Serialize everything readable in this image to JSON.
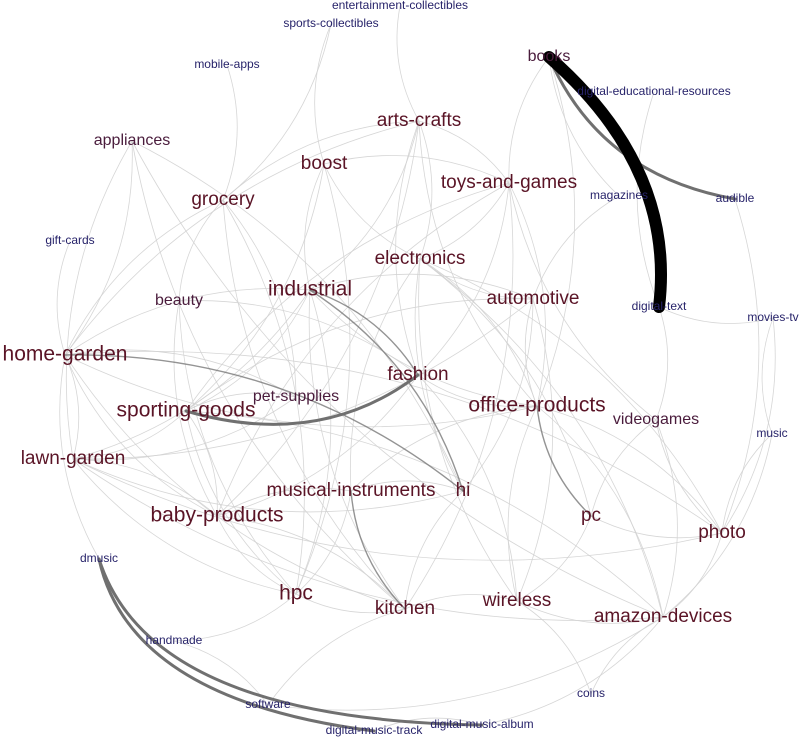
{
  "colors": {
    "background": "#ffffff",
    "large_label": "#5a1426",
    "medium_label": "#4a1c3c",
    "small_label": "#27236a",
    "faint_edge": "#d2d2d2",
    "strong_edge": "#707070",
    "heavy_edge": "#000000"
  },
  "nodes": [
    {
      "id": "entertainment-collectibles",
      "label": "entertainment-collectibles",
      "tier": "small"
    },
    {
      "id": "sports-collectibles",
      "label": "sports-collectibles",
      "tier": "small"
    },
    {
      "id": "mobile-apps",
      "label": "mobile-apps",
      "tier": "small"
    },
    {
      "id": "books",
      "label": "books",
      "tier": "mid"
    },
    {
      "id": "digital-educational-resources",
      "label": "digital-educational-resources",
      "tier": "small"
    },
    {
      "id": "appliances",
      "label": "appliances",
      "tier": "mid"
    },
    {
      "id": "arts-crafts",
      "label": "arts-crafts",
      "tier": "large"
    },
    {
      "id": "boost",
      "label": "boost",
      "tier": "large"
    },
    {
      "id": "toys-and-games",
      "label": "toys-and-games",
      "tier": "large"
    },
    {
      "id": "magazines",
      "label": "magazines",
      "tier": "small"
    },
    {
      "id": "audible",
      "label": "audible",
      "tier": "small"
    },
    {
      "id": "grocery",
      "label": "grocery",
      "tier": "large"
    },
    {
      "id": "gift-cards",
      "label": "gift-cards",
      "tier": "small"
    },
    {
      "id": "electronics",
      "label": "electronics",
      "tier": "large"
    },
    {
      "id": "industrial",
      "label": "industrial",
      "tier": "xlarge"
    },
    {
      "id": "beauty",
      "label": "beauty",
      "tier": "mid"
    },
    {
      "id": "automotive",
      "label": "automotive",
      "tier": "large"
    },
    {
      "id": "digital-text",
      "label": "digital-text",
      "tier": "small"
    },
    {
      "id": "movies-tv",
      "label": "movies-tv",
      "tier": "small"
    },
    {
      "id": "home-garden",
      "label": "home-garden",
      "tier": "xlarge"
    },
    {
      "id": "fashion",
      "label": "fashion",
      "tier": "large"
    },
    {
      "id": "pet-supplies",
      "label": "pet-supplies",
      "tier": "mid"
    },
    {
      "id": "sporting-goods",
      "label": "sporting-goods",
      "tier": "xlarge"
    },
    {
      "id": "office-products",
      "label": "office-products",
      "tier": "xlarge"
    },
    {
      "id": "videogames",
      "label": "videogames",
      "tier": "mid"
    },
    {
      "id": "music",
      "label": "music",
      "tier": "small"
    },
    {
      "id": "lawn-garden",
      "label": "lawn-garden",
      "tier": "large"
    },
    {
      "id": "musical-instruments",
      "label": "musical-instruments",
      "tier": "large"
    },
    {
      "id": "hi",
      "label": "hi",
      "tier": "large"
    },
    {
      "id": "baby-products",
      "label": "baby-products",
      "tier": "xlarge"
    },
    {
      "id": "pc",
      "label": "pc",
      "tier": "large"
    },
    {
      "id": "photo",
      "label": "photo",
      "tier": "large"
    },
    {
      "id": "dmusic",
      "label": "dmusic",
      "tier": "small"
    },
    {
      "id": "hpc",
      "label": "hpc",
      "tier": "xlarge"
    },
    {
      "id": "kitchen",
      "label": "kitchen",
      "tier": "large"
    },
    {
      "id": "wireless",
      "label": "wireless",
      "tier": "large"
    },
    {
      "id": "amazon-devices",
      "label": "amazon-devices",
      "tier": "large"
    },
    {
      "id": "handmade",
      "label": "handmade",
      "tier": "small"
    },
    {
      "id": "coins",
      "label": "coins",
      "tier": "small"
    },
    {
      "id": "software",
      "label": "software",
      "tier": "small"
    },
    {
      "id": "digital-music-track",
      "label": "digital-music-track",
      "tier": "small"
    },
    {
      "id": "digital-music-album",
      "label": "digital-music-album",
      "tier": "small"
    }
  ],
  "edges": [
    {
      "source": "books",
      "target": "digital-text",
      "weight": "heavy"
    },
    {
      "source": "books",
      "target": "audible",
      "weight": "strong"
    },
    {
      "source": "fashion",
      "target": "sporting-goods",
      "weight": "strong"
    },
    {
      "source": "dmusic",
      "target": "digital-music-track",
      "weight": "strong"
    },
    {
      "source": "dmusic",
      "target": "digital-music-album",
      "weight": "strong"
    },
    {
      "source": "industrial",
      "target": "hi",
      "weight": "medium"
    },
    {
      "source": "musical-instruments",
      "target": "kitchen",
      "weight": "medium"
    },
    {
      "source": "home-garden",
      "target": "hi",
      "weight": "medium"
    },
    {
      "source": "office-products",
      "target": "pc",
      "weight": "medium"
    },
    {
      "source": "industrial",
      "target": "fashion",
      "weight": "medium"
    },
    {
      "source": "arts-crafts",
      "target": "toys-and-games",
      "weight": "faint"
    },
    {
      "source": "arts-crafts",
      "target": "office-products",
      "weight": "faint"
    },
    {
      "source": "arts-crafts",
      "target": "electronics",
      "weight": "faint"
    },
    {
      "source": "arts-crafts",
      "target": "home-garden",
      "weight": "faint"
    },
    {
      "source": "arts-crafts",
      "target": "baby-products",
      "weight": "faint"
    },
    {
      "source": "arts-crafts",
      "target": "grocery",
      "weight": "faint"
    },
    {
      "source": "arts-crafts",
      "target": "industrial",
      "weight": "faint"
    },
    {
      "source": "arts-crafts",
      "target": "fashion",
      "weight": "faint"
    },
    {
      "source": "boost",
      "target": "toys-and-games",
      "weight": "faint"
    },
    {
      "source": "boost",
      "target": "industrial",
      "weight": "faint"
    },
    {
      "source": "boost",
      "target": "sporting-goods",
      "weight": "faint"
    },
    {
      "source": "boost",
      "target": "electronics",
      "weight": "faint"
    },
    {
      "source": "boost",
      "target": "hpc",
      "weight": "faint"
    },
    {
      "source": "toys-and-games",
      "target": "baby-products",
      "weight": "faint"
    },
    {
      "source": "toys-and-games",
      "target": "electronics",
      "weight": "faint"
    },
    {
      "source": "toys-and-games",
      "target": "videogames",
      "weight": "faint"
    },
    {
      "source": "toys-and-games",
      "target": "office-products",
      "weight": "faint"
    },
    {
      "source": "toys-and-games",
      "target": "sporting-goods",
      "weight": "faint"
    },
    {
      "source": "toys-and-games",
      "target": "kitchen",
      "weight": "faint"
    },
    {
      "source": "grocery",
      "target": "beauty",
      "weight": "faint"
    },
    {
      "source": "grocery",
      "target": "hpc",
      "weight": "faint"
    },
    {
      "source": "grocery",
      "target": "kitchen",
      "weight": "faint"
    },
    {
      "source": "grocery",
      "target": "pet-supplies",
      "weight": "faint"
    },
    {
      "source": "grocery",
      "target": "home-garden",
      "weight": "faint"
    },
    {
      "source": "appliances",
      "target": "home-garden",
      "weight": "faint"
    },
    {
      "source": "appliances",
      "target": "kitchen",
      "weight": "faint"
    },
    {
      "source": "appliances",
      "target": "hi",
      "weight": "faint"
    },
    {
      "source": "appliances",
      "target": "lawn-garden",
      "weight": "faint"
    },
    {
      "source": "electronics",
      "target": "pc",
      "weight": "faint"
    },
    {
      "source": "electronics",
      "target": "wireless",
      "weight": "faint"
    },
    {
      "source": "electronics",
      "target": "photo",
      "weight": "faint"
    },
    {
      "source": "electronics",
      "target": "automotive",
      "weight": "faint"
    },
    {
      "source": "electronics",
      "target": "office-products",
      "weight": "faint"
    },
    {
      "source": "electronics",
      "target": "musical-instruments",
      "weight": "faint"
    },
    {
      "source": "electronics",
      "target": "amazon-devices",
      "weight": "faint"
    },
    {
      "source": "electronics",
      "target": "hi",
      "weight": "faint"
    },
    {
      "source": "industrial",
      "target": "automotive",
      "weight": "faint"
    },
    {
      "source": "industrial",
      "target": "office-products",
      "weight": "faint"
    },
    {
      "source": "industrial",
      "target": "lawn-garden",
      "weight": "faint"
    },
    {
      "source": "industrial",
      "target": "home-garden",
      "weight": "faint"
    },
    {
      "source": "industrial",
      "target": "hpc",
      "weight": "faint"
    },
    {
      "source": "industrial",
      "target": "kitchen",
      "weight": "faint"
    },
    {
      "source": "industrial",
      "target": "sporting-goods",
      "weight": "faint"
    },
    {
      "source": "beauty",
      "target": "hpc",
      "weight": "faint"
    },
    {
      "source": "beauty",
      "target": "fashion",
      "weight": "faint"
    },
    {
      "source": "beauty",
      "target": "baby-products",
      "weight": "faint"
    },
    {
      "source": "automotive",
      "target": "hi",
      "weight": "faint"
    },
    {
      "source": "automotive",
      "target": "sporting-goods",
      "weight": "faint"
    },
    {
      "source": "automotive",
      "target": "wireless",
      "weight": "faint"
    },
    {
      "source": "automotive",
      "target": "office-products",
      "weight": "faint"
    },
    {
      "source": "automotive",
      "target": "lawn-garden",
      "weight": "faint"
    },
    {
      "source": "home-garden",
      "target": "kitchen",
      "weight": "faint"
    },
    {
      "source": "home-garden",
      "target": "lawn-garden",
      "weight": "faint"
    },
    {
      "source": "home-garden",
      "target": "baby-products",
      "weight": "faint"
    },
    {
      "source": "home-garden",
      "target": "pet-supplies",
      "weight": "faint"
    },
    {
      "source": "home-garden",
      "target": "office-products",
      "weight": "faint"
    },
    {
      "source": "fashion",
      "target": "baby-products",
      "weight": "faint"
    },
    {
      "source": "fashion",
      "target": "office-products",
      "weight": "faint"
    },
    {
      "source": "fashion",
      "target": "wireless",
      "weight": "faint"
    },
    {
      "source": "fashion",
      "target": "toys-and-games",
      "weight": "faint"
    },
    {
      "source": "pet-supplies",
      "target": "lawn-garden",
      "weight": "faint"
    },
    {
      "source": "pet-supplies",
      "target": "sporting-goods",
      "weight": "faint"
    },
    {
      "source": "sporting-goods",
      "target": "lawn-garden",
      "weight": "faint"
    },
    {
      "source": "sporting-goods",
      "target": "hpc",
      "weight": "faint"
    },
    {
      "source": "sporting-goods",
      "target": "baby-products",
      "weight": "faint"
    },
    {
      "source": "office-products",
      "target": "wireless",
      "weight": "faint"
    },
    {
      "source": "office-products",
      "target": "photo",
      "weight": "faint"
    },
    {
      "source": "office-products",
      "target": "musical-instruments",
      "weight": "faint"
    },
    {
      "source": "office-products",
      "target": "amazon-devices",
      "weight": "faint"
    },
    {
      "source": "videogames",
      "target": "pc",
      "weight": "faint"
    },
    {
      "source": "videogames",
      "target": "amazon-devices",
      "weight": "faint"
    },
    {
      "source": "videogames",
      "target": "photo",
      "weight": "faint"
    },
    {
      "source": "pc",
      "target": "wireless",
      "weight": "faint"
    },
    {
      "source": "pc",
      "target": "photo",
      "weight": "faint"
    },
    {
      "source": "photo",
      "target": "amazon-devices",
      "weight": "faint"
    },
    {
      "source": "wireless",
      "target": "amazon-devices",
      "weight": "faint"
    },
    {
      "source": "musical-instruments",
      "target": "hi",
      "weight": "faint"
    },
    {
      "source": "musical-instruments",
      "target": "baby-products",
      "weight": "faint"
    },
    {
      "source": "musical-instruments",
      "target": "hpc",
      "weight": "faint"
    },
    {
      "source": "hi",
      "target": "kitchen",
      "weight": "faint"
    },
    {
      "source": "hi",
      "target": "lawn-garden",
      "weight": "faint"
    },
    {
      "source": "baby-products",
      "target": "hpc",
      "weight": "faint"
    },
    {
      "source": "baby-products",
      "target": "kitchen",
      "weight": "faint"
    },
    {
      "source": "hpc",
      "target": "kitchen",
      "weight": "faint"
    },
    {
      "source": "kitchen",
      "target": "wireless",
      "weight": "faint"
    },
    {
      "source": "lawn-garden",
      "target": "hpc",
      "weight": "faint"
    },
    {
      "source": "lawn-garden",
      "target": "baby-products",
      "weight": "faint"
    },
    {
      "source": "movies-tv",
      "target": "music",
      "weight": "faint"
    },
    {
      "source": "movies-tv",
      "target": "photo",
      "weight": "faint"
    },
    {
      "source": "music",
      "target": "photo",
      "weight": "faint"
    },
    {
      "source": "music",
      "target": "amazon-devices",
      "weight": "faint"
    },
    {
      "source": "magazines",
      "target": "automotive",
      "weight": "faint"
    },
    {
      "source": "magazines",
      "target": "books",
      "weight": "faint"
    },
    {
      "source": "digital-educational-resources",
      "target": "digital-text",
      "weight": "faint"
    },
    {
      "source": "digital-text",
      "target": "videogames",
      "weight": "faint"
    },
    {
      "source": "digital-text",
      "target": "movies-tv",
      "weight": "faint"
    },
    {
      "source": "audible",
      "target": "photo",
      "weight": "faint"
    },
    {
      "source": "books",
      "target": "toys-and-games",
      "weight": "faint"
    },
    {
      "source": "books",
      "target": "office-products",
      "weight": "faint"
    },
    {
      "source": "sports-collectibles",
      "target": "boost",
      "weight": "faint"
    },
    {
      "source": "sports-collectibles",
      "target": "grocery",
      "weight": "faint"
    },
    {
      "source": "entertainment-collectibles",
      "target": "arts-crafts",
      "weight": "faint"
    },
    {
      "source": "mobile-apps",
      "target": "grocery",
      "weight": "faint"
    },
    {
      "source": "gift-cards",
      "target": "home-garden",
      "weight": "faint"
    },
    {
      "source": "coins",
      "target": "amazon-devices",
      "weight": "faint"
    },
    {
      "source": "coins",
      "target": "wireless",
      "weight": "faint"
    },
    {
      "source": "handmade",
      "target": "software",
      "weight": "faint"
    },
    {
      "source": "handmade",
      "target": "hpc",
      "weight": "faint"
    },
    {
      "source": "software",
      "target": "kitchen",
      "weight": "faint"
    },
    {
      "source": "software",
      "target": "amazon-devices",
      "weight": "faint"
    },
    {
      "source": "digital-music-track",
      "target": "digital-music-album",
      "weight": "faint"
    },
    {
      "source": "digital-music-album",
      "target": "amazon-devices",
      "weight": "faint"
    },
    {
      "source": "dmusic",
      "target": "home-garden",
      "weight": "faint"
    },
    {
      "source": "lawn-garden",
      "target": "photo",
      "weight": "faint"
    },
    {
      "source": "home-garden",
      "target": "photo",
      "weight": "faint"
    },
    {
      "source": "appliances",
      "target": "amazon-devices",
      "weight": "faint"
    },
    {
      "source": "sporting-goods",
      "target": "amazon-devices",
      "weight": "faint"
    },
    {
      "source": "lawn-garden",
      "target": "amazon-devices",
      "weight": "faint"
    }
  ]
}
